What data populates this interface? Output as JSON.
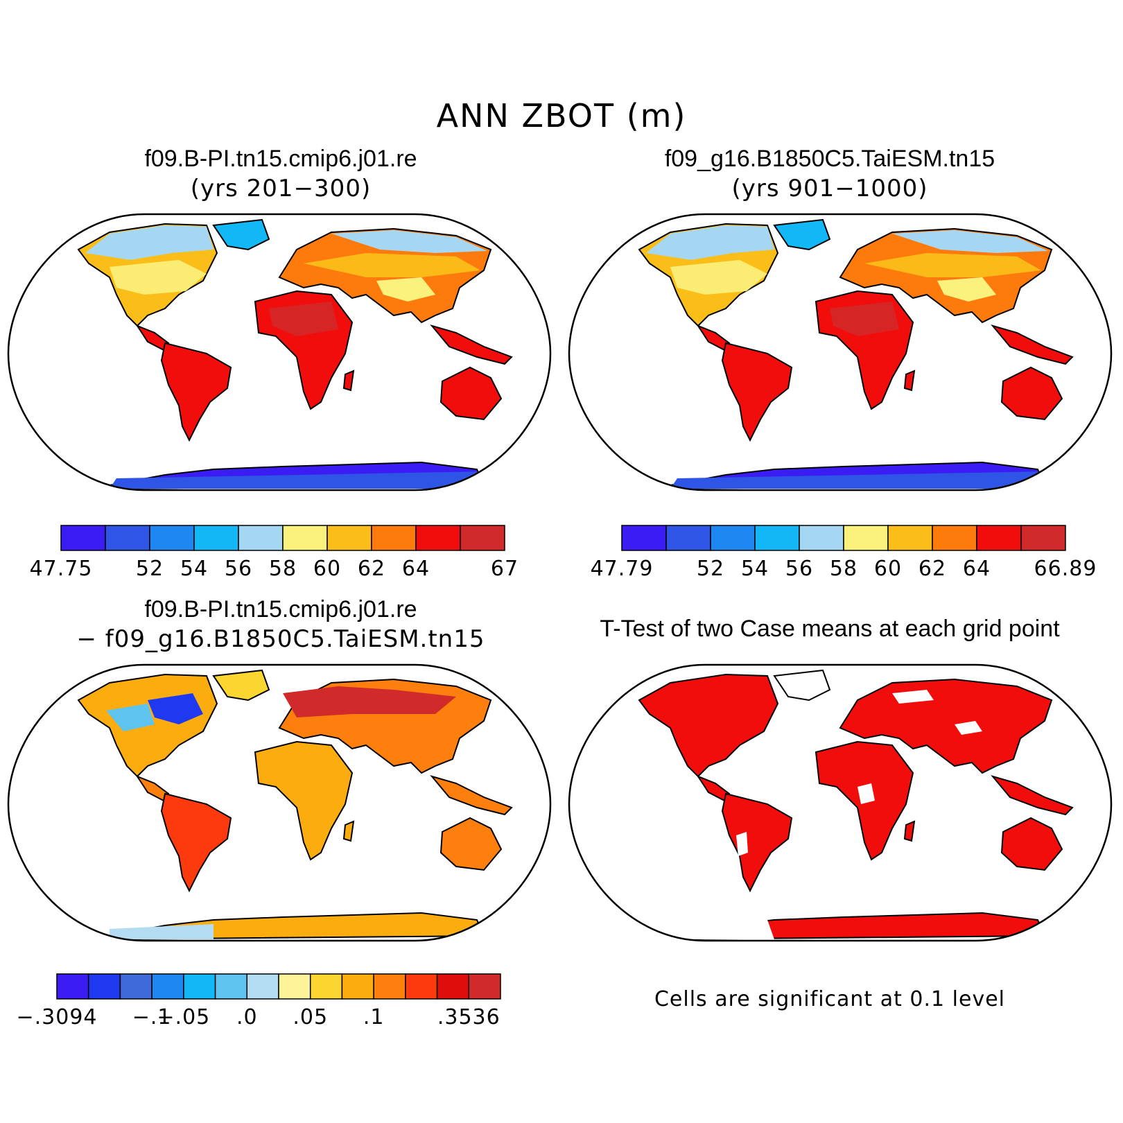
{
  "title": "ANN ZBOT (m)",
  "panels": [
    {
      "id": "case1",
      "title": "f09.B-PI.tn15.cmip6.j01.re",
      "subtitle": "(yrs 201−300)",
      "colorbar": {
        "colors": [
          "#3b1cf2",
          "#2f55e6",
          "#1f87f2",
          "#12b8f5",
          "#a5d6f2",
          "#fbf27e",
          "#fbbe19",
          "#fd7b0d",
          "#f20d0d",
          "#d12a2a"
        ],
        "labels": [
          "47.75",
          "",
          "52",
          "54",
          "56",
          "58",
          "60",
          "62",
          "64",
          "",
          "67"
        ]
      }
    },
    {
      "id": "case2",
      "title": "f09_g16.B1850C5.TaiESM.tn15",
      "subtitle": "(yrs 901−1000)",
      "colorbar": {
        "colors": [
          "#3b1cf2",
          "#2f55e6",
          "#1f87f2",
          "#12b8f5",
          "#a5d6f2",
          "#fbf27e",
          "#fbbe19",
          "#fd7b0d",
          "#f20d0d",
          "#d12a2a"
        ],
        "labels": [
          "47.79",
          "",
          "52",
          "54",
          "56",
          "58",
          "60",
          "62",
          "64",
          "",
          "66.89"
        ]
      }
    },
    {
      "id": "diff",
      "title": "f09.B-PI.tn15.cmip6.j01.re",
      "subtitle": "− f09_g16.B1850C5.TaiESM.tn15",
      "colorbar": {
        "colors": [
          "#3b1cf2",
          "#1f39f0",
          "#3f6ad9",
          "#1f87f2",
          "#12b8f5",
          "#5ec3ef",
          "#b3dcf2",
          "#fdf49a",
          "#fbd530",
          "#fbad0f",
          "#fd7f0d",
          "#fd3a0d",
          "#e00d0d",
          "#d12a2a"
        ],
        "labels": [
          "−.3094",
          "",
          "",
          "−.1",
          "−.05",
          "",
          ".0",
          "",
          ".05",
          "",
          ".1",
          "",
          "",
          ".3536",
          ""
        ]
      }
    },
    {
      "id": "ttest",
      "title": "T-Test of two Case means at each grid point",
      "note": "Cells are significant at 0.1 level"
    }
  ]
}
